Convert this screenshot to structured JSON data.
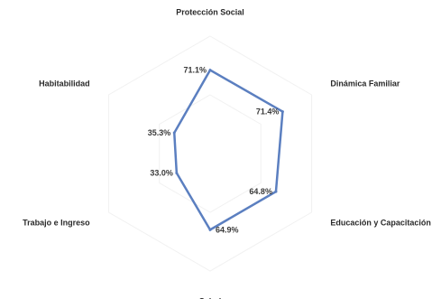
{
  "chart_data": {
    "type": "radar",
    "axes": [
      "Protección Social",
      "Dinámica Familiar",
      "Educación y Capacitación",
      "Salud",
      "Trabajo e Ingreso",
      "Habitabilidad"
    ],
    "values": [
      71.1,
      71.4,
      64.8,
      64.9,
      33.0,
      35.3
    ],
    "value_labels": [
      "71.1%",
      "71.4%",
      "64.8%",
      "64.9%",
      "33.0%",
      "35.3%"
    ],
    "series_color": "#5b7fc0",
    "rlim": [
      0,
      100
    ],
    "grid": false
  }
}
